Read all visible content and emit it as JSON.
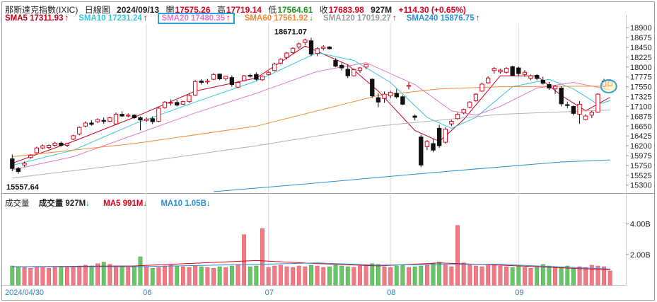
{
  "header": {
    "index_name": "那斯達克指數(IXIC)",
    "period": "日線圖",
    "date": "2024/09/13",
    "open_label": "開",
    "open": "17575.26",
    "high_label": "高",
    "high": "17719.14",
    "low_label": "低",
    "low": "17564.61",
    "close_label": "收",
    "close": "17683.98",
    "volume": "927M",
    "change": "+114.30 (+0.65%)"
  },
  "moving_averages": [
    {
      "label": "SMA5 17311.93",
      "arrow": "↑",
      "color": "#c0001a"
    },
    {
      "label": "SMA10 17231.24",
      "arrow": "↑",
      "color": "#39c6d6"
    },
    {
      "label": "SMA20 17480.35",
      "arrow": "↑",
      "color": "#e07ac8",
      "highlight": true
    },
    {
      "label": "SMA60 17561.92",
      "arrow": "↓",
      "color": "#f08a3a"
    },
    {
      "label": "SMA120 17019.27",
      "arrow": "↑",
      "color": "#9a9a9a"
    },
    {
      "label": "SMA240 15876.75",
      "arrow": "↑",
      "color": "#2a8fd8"
    }
  ],
  "volume_legend": {
    "label": "成交量",
    "vol_label": "成交量 927M",
    "vol_arrow": "↓",
    "ma5": "MA5 991M",
    "ma5_arrow": "↓",
    "ma10": "MA10 1.05B",
    "ma10_arrow": "↓"
  },
  "colors": {
    "up": "#e0001b",
    "down": "#1a9b1a",
    "up_fill": "#f17b85",
    "down_fill": "#6ac46a"
  },
  "chart_data": {
    "type": "candlestick",
    "price_ticks": [
      18900,
      18675,
      18450,
      18225,
      18000,
      17775,
      17550,
      17325,
      17100,
      16875,
      16650,
      16425,
      16200,
      15975,
      15750,
      15525,
      15300
    ],
    "price_ylim": [
      15150,
      19000
    ],
    "annotations": [
      {
        "text": "18671.07",
        "value": 18671.07
      },
      {
        "text": "15557.64",
        "value": 15557.64
      }
    ],
    "x_labels": [
      "2024/04/30",
      "06",
      "07",
      "08",
      "09"
    ],
    "x_label_index": [
      0,
      22,
      42,
      62,
      83
    ],
    "candles": [
      [
        15900,
        16000,
        15620,
        15680
      ],
      [
        15680,
        15720,
        15560,
        15610
      ],
      [
        15760,
        15840,
        15720,
        15800
      ],
      [
        15930,
        16000,
        15900,
        15980
      ],
      [
        16040,
        16180,
        16020,
        16150
      ],
      [
        16150,
        16230,
        16120,
        16200
      ],
      [
        16160,
        16230,
        16120,
        16210
      ],
      [
        16210,
        16290,
        16180,
        16260
      ],
      [
        16260,
        16300,
        16180,
        16210
      ],
      [
        16210,
        16270,
        16170,
        16250
      ],
      [
        16350,
        16450,
        16330,
        16430
      ],
      [
        16470,
        16640,
        16440,
        16620
      ],
      [
        16650,
        16760,
        16620,
        16720
      ],
      [
        16720,
        16780,
        16660,
        16690
      ],
      [
        16750,
        16830,
        16720,
        16800
      ],
      [
        16780,
        16850,
        16700,
        16760
      ],
      [
        16760,
        16860,
        16740,
        16840
      ],
      [
        16700,
        16960,
        16690,
        16920
      ],
      [
        16920,
        16990,
        16860,
        16880
      ],
      [
        16880,
        16940,
        16850,
        16900
      ],
      [
        16900,
        16920,
        16810,
        16840
      ],
      [
        16840,
        16870,
        16550,
        16790
      ],
      [
        16780,
        16850,
        16740,
        16810
      ],
      [
        16820,
        16870,
        16700,
        16750
      ],
      [
        16760,
        17080,
        16740,
        17060
      ],
      [
        17070,
        17220,
        17050,
        17200
      ],
      [
        17180,
        17260,
        17120,
        17190
      ],
      [
        17190,
        17250,
        17100,
        17130
      ],
      [
        17150,
        17230,
        17140,
        17210
      ],
      [
        17210,
        17380,
        17180,
        17350
      ],
      [
        17360,
        17700,
        17340,
        17670
      ],
      [
        17680,
        17720,
        17600,
        17650
      ],
      [
        17660,
        17730,
        17610,
        17680
      ],
      [
        17720,
        17860,
        17700,
        17830
      ],
      [
        17840,
        17850,
        17700,
        17730
      ],
      [
        17730,
        17800,
        17690,
        17790
      ],
      [
        17760,
        17810,
        17550,
        17600
      ],
      [
        17540,
        17680,
        17520,
        17650
      ],
      [
        17690,
        17820,
        17670,
        17800
      ],
      [
        17810,
        17850,
        17760,
        17790
      ],
      [
        17830,
        17880,
        17690,
        17720
      ],
      [
        17710,
        17810,
        17680,
        17790
      ],
      [
        17830,
        17900,
        17810,
        17880
      ],
      [
        17920,
        18100,
        17900,
        18070
      ],
      [
        18090,
        18200,
        18060,
        18180
      ],
      [
        18220,
        18340,
        18180,
        18320
      ],
      [
        18330,
        18450,
        18310,
        18430
      ],
      [
        18460,
        18560,
        18420,
        18530
      ],
      [
        18560,
        18650,
        18500,
        18620
      ],
      [
        18600,
        18671,
        18250,
        18300
      ],
      [
        18310,
        18450,
        18250,
        18420
      ],
      [
        18430,
        18500,
        18380,
        18460
      ],
      [
        18460,
        18480,
        18400,
        18420
      ],
      [
        18150,
        18200,
        18000,
        18020
      ],
      [
        18040,
        18100,
        17920,
        17980
      ],
      [
        17950,
        18060,
        17750,
        17800
      ],
      [
        17800,
        17970,
        17780,
        17940
      ],
      [
        17920,
        18000,
        17870,
        17980
      ],
      [
        18000,
        18070,
        17950,
        18060
      ],
      [
        17720,
        17740,
        17300,
        17340
      ],
      [
        17300,
        17400,
        17080,
        17200
      ],
      [
        17280,
        17440,
        17180,
        17380
      ],
      [
        17340,
        17460,
        17290,
        17420
      ],
      [
        17400,
        17500,
        17280,
        17320
      ],
      [
        17320,
        17350,
        17130,
        17150
      ],
      [
        17560,
        17650,
        17490,
        17580
      ],
      [
        16880,
        16920,
        16780,
        16850
      ],
      [
        16400,
        16450,
        15710,
        15760
      ],
      [
        16180,
        16330,
        16100,
        16300
      ],
      [
        16250,
        16350,
        16050,
        16100
      ],
      [
        16600,
        16680,
        16150,
        16200
      ],
      [
        16280,
        16620,
        16250,
        16580
      ],
      [
        16700,
        16790,
        16650,
        16760
      ],
      [
        16820,
        16960,
        16800,
        16920
      ],
      [
        16950,
        17050,
        16920,
        17030
      ],
      [
        17080,
        17220,
        17060,
        17200
      ],
      [
        17230,
        17400,
        17210,
        17380
      ],
      [
        17450,
        17640,
        17430,
        17610
      ],
      [
        17640,
        17790,
        17620,
        17750
      ],
      [
        17920,
        18000,
        17850,
        17970
      ],
      [
        17890,
        17960,
        17850,
        17930
      ],
      [
        17880,
        18000,
        17850,
        17970
      ],
      [
        18010,
        18030,
        17790,
        17810
      ],
      [
        17980,
        18010,
        17800,
        17850
      ],
      [
        17830,
        17930,
        17780,
        17880
      ],
      [
        17740,
        17830,
        17700,
        17800
      ],
      [
        17810,
        17840,
        17700,
        17740
      ],
      [
        17700,
        17780,
        17600,
        17630
      ],
      [
        17600,
        17660,
        17480,
        17520
      ],
      [
        17500,
        17590,
        17380,
        17560
      ],
      [
        17520,
        17560,
        17100,
        17160
      ],
      [
        17140,
        17210,
        17060,
        17120
      ],
      [
        17100,
        17120,
        16890,
        16940
      ],
      [
        16920,
        17220,
        16700,
        17150
      ],
      [
        16800,
        16920,
        16780,
        16880
      ],
      [
        16900,
        17000,
        16830,
        16970
      ],
      [
        16970,
        17400,
        16950,
        17380
      ],
      [
        17560,
        17730,
        17540,
        17680
      ],
      [
        17575.26,
        17719.14,
        17564.61,
        17683.98
      ]
    ],
    "ma_series": [
      {
        "name": "SMA5",
        "color": "#c0001a",
        "points": [
          [
            0,
            15800
          ],
          [
            10,
            16300
          ],
          [
            20,
            16850
          ],
          [
            30,
            17450
          ],
          [
            40,
            17750
          ],
          [
            48,
            18480
          ],
          [
            55,
            18050
          ],
          [
            60,
            17450
          ],
          [
            66,
            16550
          ],
          [
            70,
            16300
          ],
          [
            74,
            16800
          ],
          [
            80,
            17800
          ],
          [
            86,
            17800
          ],
          [
            90,
            17350
          ],
          [
            94,
            17000
          ],
          [
            98,
            17310
          ]
        ]
      },
      {
        "name": "SMA10",
        "color": "#39c6d6",
        "points": [
          [
            0,
            15750
          ],
          [
            10,
            16100
          ],
          [
            20,
            16700
          ],
          [
            30,
            17200
          ],
          [
            40,
            17680
          ],
          [
            50,
            18330
          ],
          [
            56,
            18150
          ],
          [
            62,
            17650
          ],
          [
            68,
            16850
          ],
          [
            72,
            16600
          ],
          [
            76,
            16850
          ],
          [
            82,
            17550
          ],
          [
            88,
            17720
          ],
          [
            92,
            17500
          ],
          [
            96,
            17150
          ],
          [
            98,
            17231
          ]
        ]
      },
      {
        "name": "SMA20",
        "color": "#e07ac8",
        "points": [
          [
            0,
            15650
          ],
          [
            10,
            15950
          ],
          [
            20,
            16450
          ],
          [
            30,
            16950
          ],
          [
            40,
            17400
          ],
          [
            50,
            17900
          ],
          [
            58,
            18100
          ],
          [
            66,
            17600
          ],
          [
            72,
            17000
          ],
          [
            76,
            16900
          ],
          [
            80,
            17100
          ],
          [
            86,
            17520
          ],
          [
            92,
            17650
          ],
          [
            98,
            17480
          ]
        ]
      },
      {
        "name": "SMA60",
        "color": "#f08a3a",
        "points": [
          [
            0,
            15950
          ],
          [
            20,
            16250
          ],
          [
            40,
            16650
          ],
          [
            60,
            17350
          ],
          [
            70,
            17500
          ],
          [
            80,
            17550
          ],
          [
            90,
            17560
          ],
          [
            98,
            17562
          ]
        ]
      },
      {
        "name": "SMA120",
        "color": "#b0b0b0",
        "points": [
          [
            0,
            15460
          ],
          [
            20,
            15800
          ],
          [
            40,
            16200
          ],
          [
            60,
            16650
          ],
          [
            80,
            16920
          ],
          [
            98,
            17019
          ]
        ]
      },
      {
        "name": "SMA240",
        "color": "#2a8fd8",
        "points": [
          [
            33,
            15150
          ],
          [
            50,
            15350
          ],
          [
            70,
            15600
          ],
          [
            90,
            15830
          ],
          [
            98,
            15877
          ]
        ]
      }
    ],
    "volume": {
      "ticks": [
        "4.00B",
        "2.00B"
      ],
      "tick_values": [
        4.0,
        2.0
      ],
      "ylim": [
        0,
        5.0
      ],
      "values": [
        1.25,
        1.2,
        1.15,
        1.1,
        1.2,
        1.15,
        1.1,
        1.15,
        1.2,
        1.15,
        1.2,
        1.25,
        1.3,
        1.25,
        1.4,
        1.5,
        1.35,
        1.25,
        1.2,
        1.15,
        1.25,
        1.85,
        1.2,
        1.1,
        1.15,
        1.25,
        1.3,
        1.25,
        1.2,
        1.15,
        1.25,
        1.2,
        1.15,
        1.1,
        1.2,
        1.15,
        1.25,
        1.35,
        3.3,
        1.2,
        1.25,
        3.7,
        1.15,
        1.25,
        1.3,
        1.2,
        1.15,
        1.25,
        1.2,
        1.3,
        1.25,
        1.15,
        1.2,
        1.3,
        1.25,
        1.2,
        1.15,
        1.25,
        1.3,
        1.4,
        1.35,
        1.2,
        1.15,
        1.25,
        1.3,
        1.15,
        1.2,
        1.25,
        1.3,
        1.4,
        1.5,
        1.35,
        1.2,
        3.9,
        1.45,
        1.3,
        1.25,
        1.2,
        1.35,
        1.3,
        1.25,
        1.2,
        1.15,
        1.25,
        1.15,
        1.1,
        1.2,
        1.35,
        1.25,
        1.2,
        1.15,
        1.25,
        1.1,
        1.2,
        1.15,
        1.3,
        1.25,
        1.2,
        0.93
      ],
      "ma5": [
        [
          0,
          1.2
        ],
        [
          20,
          1.25
        ],
        [
          40,
          1.6
        ],
        [
          50,
          1.4
        ],
        [
          60,
          1.25
        ],
        [
          70,
          1.45
        ],
        [
          80,
          1.3
        ],
        [
          98,
          0.99
        ]
      ],
      "ma10": [
        [
          0,
          1.2
        ],
        [
          20,
          1.2
        ],
        [
          40,
          1.35
        ],
        [
          50,
          1.45
        ],
        [
          60,
          1.3
        ],
        [
          70,
          1.35
        ],
        [
          80,
          1.35
        ],
        [
          98,
          1.05
        ]
      ]
    }
  }
}
